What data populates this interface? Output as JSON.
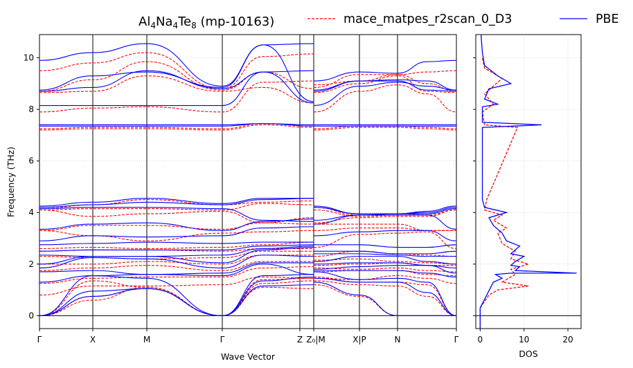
{
  "chart_data": [
    {
      "type": "line",
      "title_main": "Al",
      "title_sub1": "4",
      "title_mid1": "Na",
      "title_sub2": "4",
      "title_mid2": "Te",
      "title_sub3": "8",
      "title_tail": " (mp-10163)",
      "xlabel": "Wave Vector",
      "ylabel": "Frequency (THz)",
      "ylim": [
        -0.5,
        10.9
      ],
      "yticks": [
        0,
        2,
        4,
        6,
        8,
        10
      ],
      "kpoint_labels": [
        "Γ",
        "X",
        "M",
        "Γ",
        "Z",
        "Z₀|M",
        "X|P",
        "N",
        "Γ"
      ],
      "legend": [
        "mace_matpes_r2scan_0_D3",
        "PBE"
      ],
      "colors": {
        "mace": "#ff0000",
        "pbe": "#0000ff"
      },
      "series": [
        {
          "name": "PBE",
          "style": "solid",
          "bands": [
            [
              0,
              0.75,
              1.05,
              0,
              1.15,
              1.2,
              1.3,
              0.8,
              0,
              0,
              0
            ],
            [
              0,
              0.95,
              1.05,
              0,
              1.35,
              1.5,
              1.45,
              1.3,
              1.3,
              0.9,
              0
            ],
            [
              0,
              1.55,
              1.45,
              0,
              1.55,
              1.6,
              1.7,
              1.4,
              1.45,
              1.3,
              0
            ],
            [
              1.3,
              1.55,
              1.6,
              1.55,
              2.0,
              1.6,
              1.75,
              1.75,
              1.75,
              1.65,
              1.5
            ],
            [
              1.7,
              1.75,
              1.6,
              1.65,
              2.05,
              2.05,
              1.8,
              1.9,
              1.95,
              1.95,
              1.65
            ],
            [
              1.85,
              2.25,
              2.2,
              1.85,
              2.35,
              2.3,
              2.0,
              2.05,
              2.05,
              1.95,
              1.85
            ],
            [
              2.0,
              2.3,
              2.3,
              2.05,
              2.55,
              2.65,
              2.1,
              2.3,
              2.3,
              2.1,
              2.0
            ],
            [
              2.35,
              2.3,
              2.3,
              2.35,
              2.6,
              2.7,
              2.4,
              2.4,
              2.35,
              2.3,
              2.3
            ],
            [
              2.5,
              2.55,
              2.55,
              2.55,
              2.7,
              2.75,
              2.5,
              2.5,
              2.4,
              2.4,
              2.5
            ],
            [
              2.75,
              2.8,
              2.85,
              2.8,
              2.85,
              2.85,
              2.75,
              2.75,
              2.65,
              2.65,
              2.75
            ],
            [
              2.9,
              3.1,
              3.05,
              3.1,
              3.4,
              3.45,
              3.1,
              3.25,
              3.3,
              3.3,
              2.9
            ],
            [
              3.35,
              3.55,
              3.6,
              3.3,
              3.65,
              3.75,
              3.55,
              3.9,
              3.9,
              3.9,
              3.35
            ],
            [
              4.15,
              4.2,
              4.2,
              4.15,
              3.7,
              3.65,
              3.7,
              3.9,
              3.95,
              3.95,
              4.15
            ],
            [
              4.2,
              4.3,
              4.4,
              4.3,
              4.5,
              4.55,
              4.2,
              3.95,
              3.95,
              4.0,
              4.2
            ],
            [
              4.25,
              4.4,
              4.55,
              4.35,
              4.55,
              4.55,
              4.25,
              3.95,
              3.95,
              4.05,
              4.25
            ],
            [
              7.35,
              7.35,
              7.35,
              7.35,
              7.45,
              7.35,
              7.35,
              7.35,
              7.35,
              7.35,
              7.35
            ],
            [
              7.4,
              7.4,
              7.4,
              7.4,
              7.45,
              7.4,
              7.4,
              7.4,
              7.4,
              7.4,
              7.4
            ],
            [
              8.15,
              8.15,
              8.15,
              8.15,
              9.45,
              9.5,
              8.15,
              8.9,
              9.05,
              8.9,
              8.75
            ],
            [
              8.7,
              8.85,
              9.5,
              8.8,
              9.45,
              8.25,
              8.7,
              9.1,
              9.1,
              8.75,
              8.7
            ],
            [
              8.75,
              9.3,
              9.45,
              8.85,
              10.5,
              8.3,
              8.75,
              9.1,
              9.15,
              9.1,
              8.75
            ],
            [
              9.9,
              10.2,
              10.55,
              8.9,
              10.5,
              10.55,
              9.1,
              9.45,
              9.4,
              9.85,
              9.9
            ]
          ]
        },
        {
          "name": "mace_matpes_r2scan_0_D3",
          "style": "dashed",
          "bands": [
            [
              0,
              0.6,
              1.1,
              0,
              1.1,
              1.05,
              1.2,
              0.75,
              0,
              0,
              0
            ],
            [
              0,
              0.75,
              1.05,
              0,
              1.25,
              1.35,
              1.35,
              1.2,
              1.15,
              0.75,
              0
            ],
            [
              0,
              1.35,
              1.1,
              0,
              1.4,
              1.45,
              1.5,
              1.3,
              1.3,
              1.2,
              0
            ],
            [
              0.8,
              1.15,
              1.15,
              1.2,
              1.5,
              1.45,
              1.45,
              1.4,
              1.55,
              1.45,
              1.25
            ],
            [
              1.25,
              1.45,
              1.5,
              1.5,
              1.85,
              1.9,
              1.7,
              1.75,
              1.75,
              1.6,
              1.55
            ],
            [
              1.75,
              1.85,
              1.95,
              1.75,
              2.1,
              2.1,
              1.85,
              1.8,
              1.85,
              1.75,
              1.7
            ],
            [
              2.0,
              2.0,
              2.1,
              2.0,
              2.35,
              2.35,
              1.95,
              2.0,
              2.05,
              1.95,
              1.95
            ],
            [
              2.3,
              2.25,
              2.2,
              2.25,
              2.5,
              2.5,
              2.15,
              2.2,
              2.1,
              2.05,
              2.0
            ],
            [
              2.5,
              2.55,
              2.55,
              2.5,
              2.6,
              2.6,
              2.3,
              2.5,
              2.4,
              2.35,
              2.3
            ],
            [
              2.6,
              2.65,
              2.6,
              2.65,
              2.75,
              2.85,
              2.65,
              3.15,
              3.2,
              3.25,
              2.6
            ],
            [
              3.3,
              3.1,
              2.9,
              3.2,
              3.25,
              3.3,
              3.3,
              3.4,
              3.4,
              3.3,
              3.3
            ],
            [
              3.3,
              3.5,
              3.5,
              3.35,
              3.6,
              3.55,
              3.55,
              3.55,
              3.55,
              3.3,
              3.3
            ],
            [
              4.1,
              3.85,
              3.95,
              4.05,
              3.6,
              3.8,
              3.6,
              3.8,
              3.85,
              3.85,
              4.1
            ],
            [
              4.1,
              4.15,
              4.15,
              4.1,
              4.35,
              4.3,
              4.1,
              3.85,
              3.9,
              3.9,
              4.1
            ],
            [
              4.15,
              4.3,
              4.5,
              4.3,
              4.4,
              4.45,
              4.2,
              3.9,
              3.9,
              3.95,
              4.15
            ],
            [
              7.2,
              7.25,
              7.25,
              7.2,
              7.4,
              7.3,
              7.2,
              7.3,
              7.3,
              7.25,
              7.2
            ],
            [
              7.25,
              7.3,
              7.3,
              7.25,
              7.45,
              7.35,
              7.25,
              7.35,
              7.35,
              7.3,
              7.25
            ],
            [
              7.9,
              8.05,
              8.1,
              7.9,
              9.05,
              9.1,
              7.9,
              8.7,
              8.95,
              8.6,
              7.9
            ],
            [
              8.65,
              8.7,
              9.3,
              8.7,
              8.85,
              8.25,
              8.65,
              9.0,
              9.3,
              8.7,
              8.65
            ],
            [
              8.7,
              9.15,
              9.85,
              8.75,
              9.45,
              8.8,
              8.85,
              9.35,
              9.35,
              9.0,
              8.7
            ],
            [
              9.5,
              9.8,
              10.2,
              8.8,
              10.05,
              10.15,
              8.95,
              9.1,
              9.35,
              9.45,
              9.5
            ]
          ]
        }
      ]
    },
    {
      "type": "line",
      "xlabel": "DOS",
      "xlim": [
        -1,
        23
      ],
      "xticks": [
        0,
        10,
        20
      ],
      "grid": true,
      "series": [
        {
          "name": "PBE",
          "style": "solid",
          "points": [
            [
              0,
              -0.5
            ],
            [
              0,
              0.3
            ],
            [
              1.5,
              0.8
            ],
            [
              3,
              1.3
            ],
            [
              5,
              1.45
            ],
            [
              3.5,
              1.6
            ],
            [
              7,
              1.65
            ],
            [
              22,
              1.65
            ],
            [
              8,
              1.75
            ],
            [
              9,
              1.9
            ],
            [
              7,
              1.95
            ],
            [
              8,
              2.1
            ],
            [
              10,
              2.3
            ],
            [
              7,
              2.4
            ],
            [
              9,
              2.7
            ],
            [
              6,
              2.9
            ],
            [
              5,
              3.2
            ],
            [
              3,
              3.5
            ],
            [
              2,
              3.8
            ],
            [
              6,
              4.0
            ],
            [
              1,
              4.2
            ],
            [
              0.5,
              4.5
            ],
            [
              0.5,
              7.3
            ],
            [
              14,
              7.4
            ],
            [
              0.5,
              7.5
            ],
            [
              0.5,
              8.1
            ],
            [
              4,
              8.2
            ],
            [
              1,
              8.4
            ],
            [
              2,
              8.8
            ],
            [
              7,
              9.0
            ],
            [
              4,
              9.3
            ],
            [
              1,
              9.7
            ],
            [
              0.5,
              10.2
            ],
            [
              0.2,
              10.9
            ]
          ]
        },
        {
          "name": "mace_matpes_r2scan_0_D3",
          "style": "dashed",
          "points": [
            [
              0,
              -0.5
            ],
            [
              0,
              0.3
            ],
            [
              2,
              0.8
            ],
            [
              4,
              1.0
            ],
            [
              11,
              1.15
            ],
            [
              5,
              1.3
            ],
            [
              8,
              1.6
            ],
            [
              7,
              1.8
            ],
            [
              11,
              2.0
            ],
            [
              7,
              2.2
            ],
            [
              8,
              2.5
            ],
            [
              5,
              2.8
            ],
            [
              4,
              3.2
            ],
            [
              6,
              3.4
            ],
            [
              3,
              3.7
            ],
            [
              5,
              3.9
            ],
            [
              1,
              4.1
            ],
            [
              1.5,
              4.5
            ],
            [
              4,
              5.5
            ],
            [
              8.5,
              7.3
            ],
            [
              1,
              7.4
            ],
            [
              0.5,
              7.9
            ],
            [
              3,
              8.2
            ],
            [
              1,
              8.6
            ],
            [
              3,
              8.9
            ],
            [
              5,
              9.2
            ],
            [
              1,
              9.6
            ],
            [
              0.5,
              10.0
            ]
          ]
        }
      ]
    }
  ]
}
